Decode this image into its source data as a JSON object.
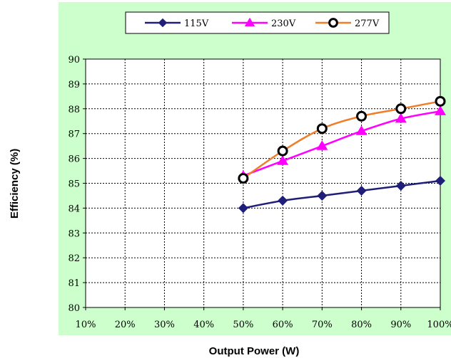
{
  "chart_data": {
    "type": "line",
    "xlabel": "Output Power (W)",
    "ylabel": "Efficiency (%)",
    "x_ticks": [
      "10%",
      "20%",
      "30%",
      "40%",
      "50%",
      "60%",
      "70%",
      "80%",
      "90%",
      "100%"
    ],
    "y_ticks": [
      "80",
      "81",
      "82",
      "83",
      "84",
      "85",
      "86",
      "87",
      "88",
      "89",
      "90"
    ],
    "xlim": [
      10,
      100
    ],
    "ylim": [
      80,
      90
    ],
    "grid": true,
    "legend_position": "top",
    "plot_background": "#ffffff",
    "outer_background": "#ccffcc",
    "series": [
      {
        "name": "115V",
        "color": "#1f1f7a",
        "marker": "diamond",
        "x": [
          50,
          60,
          70,
          80,
          90,
          100
        ],
        "y": [
          84.0,
          84.3,
          84.5,
          84.7,
          84.9,
          85.1
        ]
      },
      {
        "name": "230V",
        "color": "#ff00ff",
        "marker": "triangle",
        "x": [
          50,
          60,
          70,
          80,
          90,
          100
        ],
        "y": [
          85.3,
          85.9,
          86.5,
          87.1,
          87.6,
          87.9
        ]
      },
      {
        "name": "277V",
        "color": "#f07d28",
        "marker": "circle-open",
        "x": [
          50,
          60,
          70,
          80,
          90,
          100
        ],
        "y": [
          85.2,
          86.3,
          87.2,
          87.7,
          88.0,
          88.3
        ]
      }
    ]
  }
}
